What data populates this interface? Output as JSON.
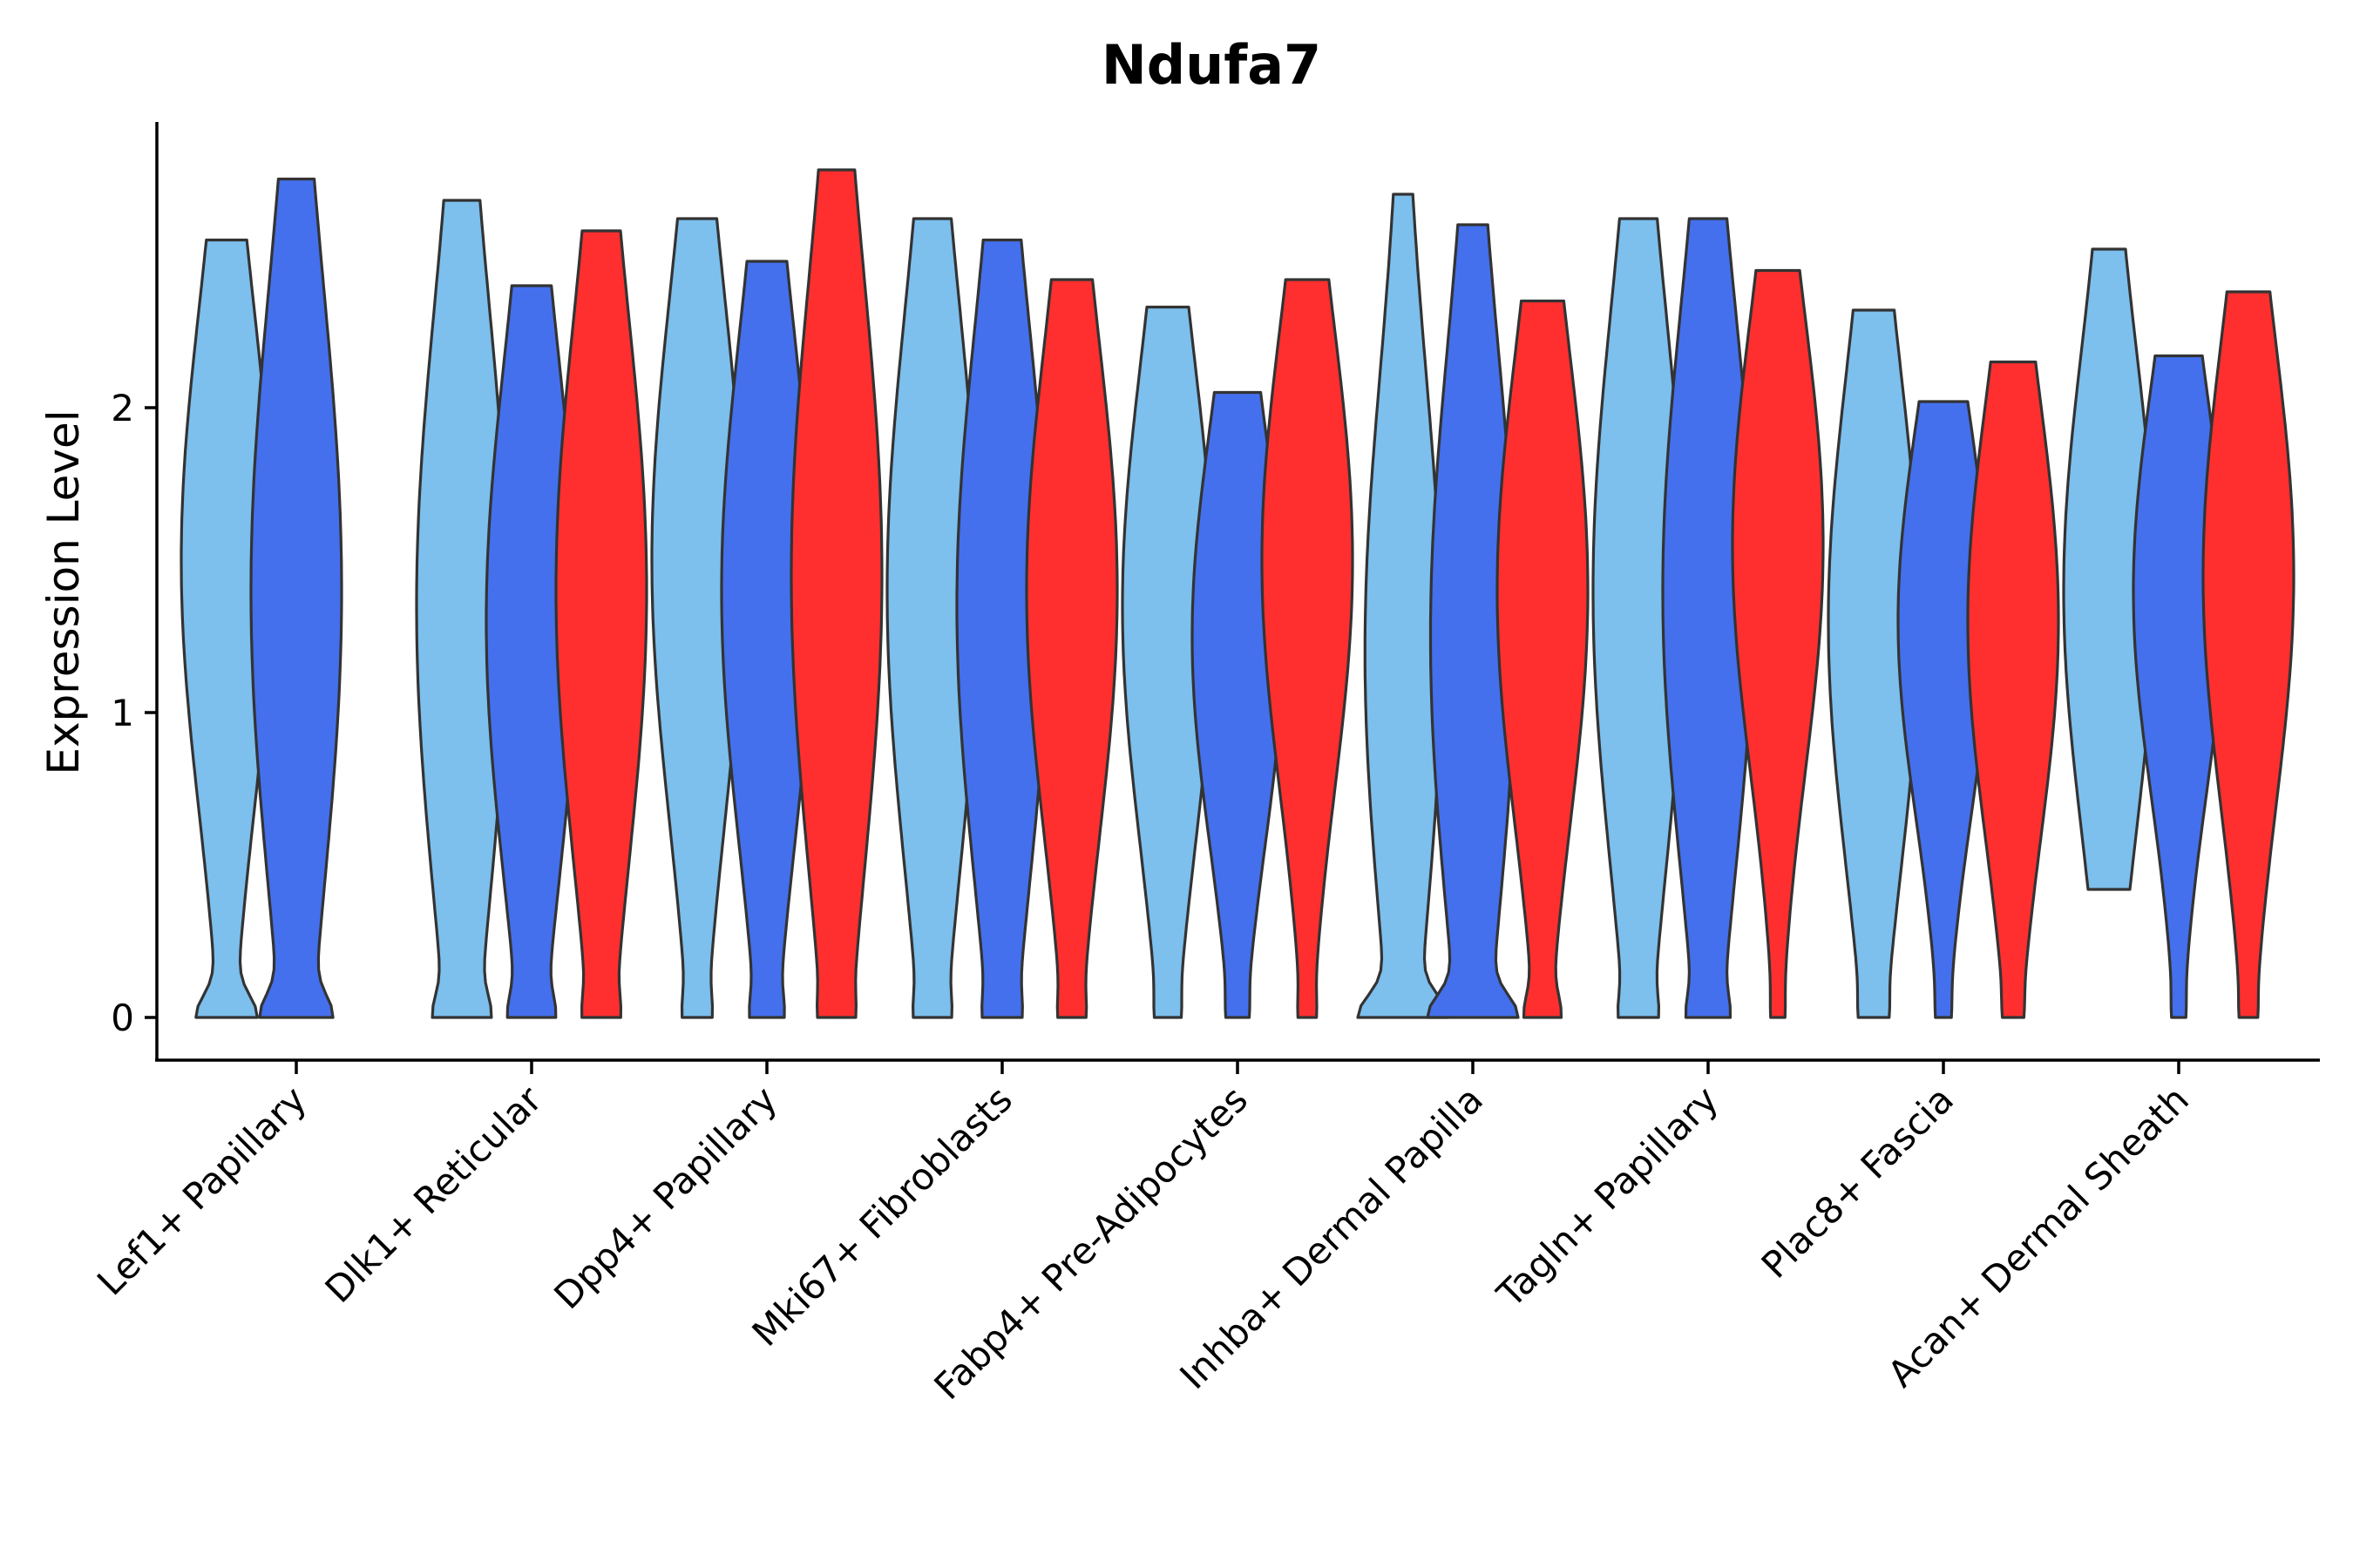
{
  "chart_data": {
    "type": "violin",
    "title": "Ndufa7",
    "ylabel": "Expression Level",
    "xlabel": "",
    "ylim": [
      -0.14,
      2.9
    ],
    "yticks": [
      0,
      1,
      2
    ],
    "grid": false,
    "legend": "none",
    "colors": [
      "#7dbfed",
      "#4470ed",
      "#ff2f2f"
    ],
    "categories": [
      "Lef1+ Papillary",
      "Dlk1+ Reticular",
      "Dpp4+ Papillary",
      "Mki67+ Fibroblasts",
      "Fabp4+ Pre-Adipocytes",
      "Inhba+ Dermal Papilla",
      "Tagln+ Papillary",
      "Plac8+ Fascia",
      "Acan+ Dermal Sheath"
    ],
    "violins": [
      {
        "category": 0,
        "group": 0,
        "max": 2.55,
        "median": 1.5,
        "min": 0,
        "zero_fraction": 0.22
      },
      {
        "category": 0,
        "group": 1,
        "max": 2.75,
        "median": 1.4,
        "min": 0,
        "zero_fraction": 0.2
      },
      {
        "category": 1,
        "group": 0,
        "max": 2.68,
        "median": 1.35,
        "min": 0,
        "zero_fraction": 0.12
      },
      {
        "category": 1,
        "group": 1,
        "max": 2.4,
        "median": 1.3,
        "min": 0,
        "zero_fraction": 0.1
      },
      {
        "category": 1,
        "group": 2,
        "max": 2.58,
        "median": 1.4,
        "min": 0,
        "zero_fraction": 0.06
      },
      {
        "category": 2,
        "group": 0,
        "max": 2.62,
        "median": 1.5,
        "min": 0,
        "zero_fraction": 0.05
      },
      {
        "category": 2,
        "group": 1,
        "max": 2.48,
        "median": 1.4,
        "min": 0,
        "zero_fraction": 0.06
      },
      {
        "category": 2,
        "group": 2,
        "max": 2.78,
        "median": 1.45,
        "min": 0,
        "zero_fraction": 0.04
      },
      {
        "category": 3,
        "group": 0,
        "max": 2.62,
        "median": 1.4,
        "min": 0,
        "zero_fraction": 0.05
      },
      {
        "category": 3,
        "group": 1,
        "max": 2.55,
        "median": 1.35,
        "min": 0,
        "zero_fraction": 0.05
      },
      {
        "category": 3,
        "group": 2,
        "max": 2.42,
        "median": 1.4,
        "min": 0,
        "zero_fraction": 0.04
      },
      {
        "category": 4,
        "group": 0,
        "max": 2.33,
        "median": 1.35,
        "min": 0,
        "zero_fraction": 0.03
      },
      {
        "category": 4,
        "group": 1,
        "max": 2.05,
        "median": 1.25,
        "min": 0,
        "zero_fraction": 0.03
      },
      {
        "category": 4,
        "group": 2,
        "max": 2.42,
        "median": 1.5,
        "min": 0,
        "zero_fraction": 0.03
      },
      {
        "category": 5,
        "group": 0,
        "max": 2.7,
        "median": 1.2,
        "min": 0,
        "zero_fraction": 0.35
      },
      {
        "category": 5,
        "group": 1,
        "max": 2.6,
        "median": 1.25,
        "min": 0,
        "zero_fraction": 0.3
      },
      {
        "category": 5,
        "group": 2,
        "max": 2.35,
        "median": 1.4,
        "min": 0,
        "zero_fraction": 0.1
      },
      {
        "category": 6,
        "group": 0,
        "max": 2.62,
        "median": 1.4,
        "min": 0,
        "zero_fraction": 0.06
      },
      {
        "category": 6,
        "group": 1,
        "max": 2.62,
        "median": 1.4,
        "min": 0,
        "zero_fraction": 0.08
      },
      {
        "category": 6,
        "group": 2,
        "max": 2.45,
        "median": 1.55,
        "min": 0,
        "zero_fraction": 0.02
      },
      {
        "category": 7,
        "group": 0,
        "max": 2.32,
        "median": 1.3,
        "min": 0,
        "zero_fraction": 0.03
      },
      {
        "category": 7,
        "group": 1,
        "max": 2.02,
        "median": 1.3,
        "min": 0,
        "zero_fraction": 0.02
      },
      {
        "category": 7,
        "group": 2,
        "max": 2.15,
        "median": 1.3,
        "min": 0,
        "zero_fraction": 0.02
      },
      {
        "category": 8,
        "group": 0,
        "max": 2.52,
        "median": 1.4,
        "min": 0.42,
        "zero_fraction": 0
      },
      {
        "category": 8,
        "group": 1,
        "max": 2.17,
        "median": 1.4,
        "min": 0,
        "zero_fraction": 0.02
      },
      {
        "category": 8,
        "group": 2,
        "max": 2.38,
        "median": 1.45,
        "min": 0,
        "zero_fraction": 0.02
      }
    ]
  }
}
